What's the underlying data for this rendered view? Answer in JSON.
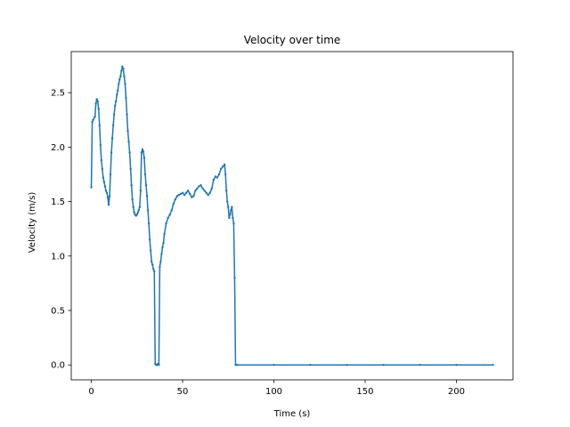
{
  "chart_data": {
    "type": "line",
    "title": "Velocity over time",
    "xlabel": "Time (s)",
    "ylabel": "Velocity (m/s)",
    "xlim": [
      -11,
      231
    ],
    "ylim": [
      -0.137,
      2.877
    ],
    "xticks": [
      0,
      50,
      100,
      150,
      200
    ],
    "xtick_labels": [
      "0",
      "50",
      "100",
      "150",
      "200"
    ],
    "yticks": [
      0.0,
      0.5,
      1.0,
      1.5,
      2.0,
      2.5
    ],
    "ytick_labels": [
      "0.0",
      "0.5",
      "1.0",
      "1.5",
      "2.0",
      "2.5"
    ],
    "grid": false,
    "legend": "none",
    "series": [
      {
        "color": "#1f77b4",
        "marker": "dot",
        "x": [
          0,
          0.5,
          1,
          2,
          2.5,
          3,
          3.5,
          4,
          4.5,
          5,
          5.5,
          6,
          6.5,
          7,
          7.5,
          8,
          8.5,
          9,
          9.5,
          10,
          10.5,
          11,
          11.5,
          12,
          12.5,
          13,
          13.5,
          14,
          14.5,
          15,
          15.5,
          16,
          16.5,
          17,
          17.5,
          18,
          18.5,
          19,
          19.5,
          20,
          20.5,
          21,
          21.5,
          22,
          22.5,
          23,
          23.5,
          24,
          24.5,
          25,
          25.5,
          26,
          26.5,
          27,
          27.5,
          28,
          28.5,
          29,
          29.5,
          30,
          30.5,
          31,
          31.5,
          32,
          32.5,
          33,
          33.5,
          34,
          34.5,
          35,
          35.5,
          36,
          36.5,
          37,
          37.5,
          38,
          38.5,
          39,
          39.5,
          40,
          41,
          42,
          43,
          44,
          45,
          46,
          47,
          48,
          49,
          50,
          51,
          52,
          53,
          54,
          55,
          56,
          57,
          58,
          59,
          60,
          61,
          62,
          63,
          64,
          65,
          66,
          67,
          68,
          69,
          70,
          71,
          72,
          73,
          73.5,
          74,
          74.5,
          75,
          75.5,
          76,
          76.5,
          77,
          77.5,
          78,
          78.5,
          79,
          80,
          100,
          120,
          140,
          160,
          180,
          200,
          220
        ],
        "y": [
          1.63,
          2.23,
          2.25,
          2.28,
          2.4,
          2.44,
          2.42,
          2.35,
          2.2,
          2.02,
          1.88,
          1.8,
          1.72,
          1.68,
          1.64,
          1.6,
          1.58,
          1.54,
          1.47,
          1.55,
          1.75,
          1.95,
          2.08,
          2.2,
          2.3,
          2.38,
          2.42,
          2.48,
          2.52,
          2.58,
          2.62,
          2.65,
          2.7,
          2.74,
          2.72,
          2.65,
          2.58,
          2.45,
          2.3,
          2.15,
          2.05,
          1.95,
          1.8,
          1.65,
          1.52,
          1.45,
          1.4,
          1.38,
          1.37,
          1.38,
          1.4,
          1.42,
          1.45,
          1.6,
          1.95,
          1.98,
          1.96,
          1.9,
          1.75,
          1.65,
          1.55,
          1.42,
          1.3,
          1.15,
          1.05,
          0.95,
          0.92,
          0.88,
          0.86,
          0.01,
          0.0,
          0.0,
          0.01,
          0.0,
          0.9,
          0.95,
          1.02,
          1.08,
          1.12,
          1.2,
          1.3,
          1.35,
          1.38,
          1.42,
          1.48,
          1.52,
          1.55,
          1.56,
          1.57,
          1.58,
          1.56,
          1.58,
          1.6,
          1.57,
          1.54,
          1.55,
          1.6,
          1.62,
          1.64,
          1.65,
          1.62,
          1.6,
          1.58,
          1.56,
          1.58,
          1.62,
          1.7,
          1.73,
          1.72,
          1.75,
          1.8,
          1.82,
          1.84,
          1.75,
          1.6,
          1.5,
          1.45,
          1.35,
          1.38,
          1.42,
          1.45,
          1.35,
          1.3,
          0.8,
          0.0,
          0.0,
          0.0,
          0.0,
          0.0,
          0.0,
          0.0,
          0.0,
          0.0
        ]
      }
    ]
  }
}
